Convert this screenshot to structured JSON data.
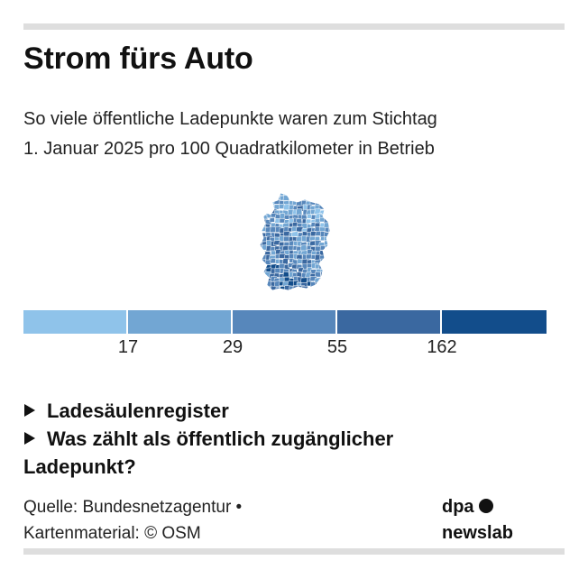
{
  "header": {
    "title": "Strom fürs Auto",
    "subtitle_line1": "So viele öffentliche Ladepunkte waren zum Stichtag",
    "subtitle_line2": "1. Januar 2025 pro 100 Quadratkilometer in Betrieb"
  },
  "map": {
    "region": "Germany",
    "unit_level": "districts",
    "projection": "choropleth"
  },
  "legend": {
    "bins": [
      {
        "from": null,
        "to": 17,
        "color": "#8fc3ea"
      },
      {
        "from": 17,
        "to": 29,
        "color": "#72a6d3"
      },
      {
        "from": 29,
        "to": 55,
        "color": "#5787bb"
      },
      {
        "from": 55,
        "to": 162,
        "color": "#3a68a0"
      },
      {
        "from": 162,
        "to": null,
        "color": "#124d8b"
      }
    ],
    "ticks": [
      "17",
      "29",
      "55",
      "162"
    ]
  },
  "links": {
    "register": "Ladesäulenregister",
    "faq": "Was zählt als öffentlich zugänglicher Ladepunkt?"
  },
  "footer": {
    "source_line1": "Quelle: Bundesnetzagentur •",
    "source_line2": "Kartenmaterial: © OSM",
    "logo_line1": "dpa",
    "logo_line2": "newslab"
  },
  "colors": {
    "rule": "#dedede",
    "text": "#111111"
  }
}
